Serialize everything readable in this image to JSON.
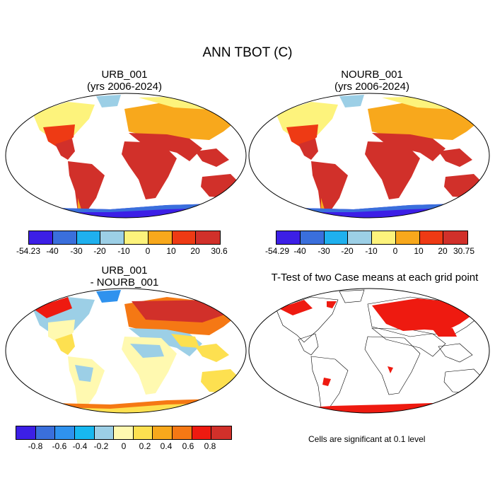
{
  "title": "ANN TBOT (C)",
  "panels": {
    "p1": {
      "title1": "URB_001",
      "title2": "(yrs 2006-2024)"
    },
    "p2": {
      "title1": "NOURB_001",
      "title2": "(yrs 2006-2024)"
    },
    "p3": {
      "title1": "URB_001",
      "title2": "- NOURB_001"
    },
    "p4": {
      "title1": "T-Test of two Case means at each grid point"
    }
  },
  "colorbars": {
    "cb1": {
      "colors": [
        "#3c1fe6",
        "#3a6fdc",
        "#1fb0ee",
        "#9ccfe6",
        "#fdf37c",
        "#f8a81c",
        "#ee3a14",
        "#d1302a"
      ],
      "ticks": [
        "-54.23",
        "-40",
        "-30",
        "-20",
        "-10",
        "0",
        "10",
        "20",
        "30.6"
      ]
    },
    "cb2": {
      "colors": [
        "#3c1fe6",
        "#3a6fdc",
        "#1fb0ee",
        "#9ccfe6",
        "#fdf37c",
        "#f8a81c",
        "#ee3a14",
        "#d1302a"
      ],
      "ticks": [
        "-54.29",
        "-40",
        "-30",
        "-20",
        "-10",
        "0",
        "10",
        "20",
        "30.75"
      ]
    },
    "cb3": {
      "colors": [
        "#3c1fe6",
        "#3a6fdc",
        "#2f92ee",
        "#17b8f0",
        "#9ccfe6",
        "#fff9b0",
        "#fde050",
        "#f8a81c",
        "#f57814",
        "#ee1a10",
        "#d1302a"
      ],
      "ticks": [
        "-0.8",
        "-0.6",
        "-0.4",
        "-0.2",
        "0",
        "0.2",
        "0.4",
        "0.6",
        "0.8"
      ]
    }
  },
  "note": "Cells are significant at 0.1 level",
  "colors": {
    "warm": "#d1302a",
    "hot": "#ee3a14",
    "mid": "#f8a81c",
    "cool": "#fdf37c",
    "cold": "#9ccfe6",
    "ice": "#3a6fdc",
    "deep": "#3c1fe6",
    "sig": "#ee1a10"
  }
}
